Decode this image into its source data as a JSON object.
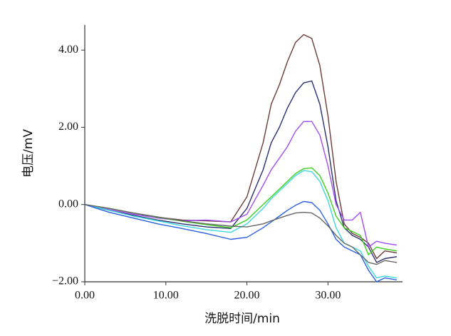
{
  "chart_data": {
    "type": "line",
    "x_label": "洗脱时间/min",
    "y_label": "电压/mV",
    "x": [
      0,
      3,
      6,
      9,
      12,
      15,
      18,
      20,
      22,
      23,
      24,
      25,
      26,
      27,
      28,
      29,
      30,
      31,
      32,
      33,
      34,
      35,
      36,
      37,
      38.5
    ],
    "series": [
      {
        "color": "#6b3a3a",
        "values": [
          0,
          -0.13,
          -0.25,
          -0.33,
          -0.4,
          -0.42,
          -0.45,
          0.2,
          1.6,
          2.6,
          3.1,
          3.7,
          4.2,
          4.4,
          4.3,
          3.6,
          2.3,
          0.6,
          -0.5,
          -0.75,
          -0.85,
          -1.0,
          -1.4,
          -1.2,
          -1.25
        ]
      },
      {
        "color": "#2b2f6e",
        "values": [
          0,
          -0.15,
          -0.28,
          -0.4,
          -0.5,
          -0.58,
          -0.62,
          -0.1,
          0.9,
          1.6,
          2.0,
          2.5,
          2.9,
          3.15,
          3.2,
          2.6,
          1.5,
          0.1,
          -0.6,
          -0.8,
          -0.9,
          -1.1,
          -1.5,
          -1.4,
          -1.35
        ]
      },
      {
        "color": "#a04ef0",
        "values": [
          0,
          -0.13,
          -0.25,
          -0.35,
          -0.42,
          -0.4,
          -0.45,
          -0.25,
          0.5,
          0.9,
          1.2,
          1.5,
          1.9,
          2.15,
          2.15,
          1.8,
          1.0,
          0.0,
          -0.4,
          -0.4,
          -0.2,
          -1.1,
          -0.95,
          -1.0,
          -1.05
        ]
      },
      {
        "color": "#3ccf1e",
        "values": [
          0,
          -0.1,
          -0.22,
          -0.33,
          -0.43,
          -0.52,
          -0.6,
          -0.4,
          0.0,
          0.2,
          0.4,
          0.6,
          0.8,
          0.93,
          0.95,
          0.75,
          0.3,
          -0.3,
          -0.6,
          -0.7,
          -0.8,
          -1.3,
          -1.1,
          -1.15,
          -1.2
        ]
      },
      {
        "color": "#3fd6e0",
        "values": [
          0,
          -0.15,
          -0.3,
          -0.42,
          -0.55,
          -0.65,
          -0.72,
          -0.5,
          -0.1,
          0.15,
          0.35,
          0.55,
          0.75,
          0.88,
          0.85,
          0.6,
          0.1,
          -0.6,
          -1.0,
          -1.1,
          -1.2,
          -1.6,
          -1.9,
          -1.85,
          -1.9
        ]
      },
      {
        "color": "#2a5fe0",
        "values": [
          0,
          -0.2,
          -0.35,
          -0.5,
          -0.62,
          -0.75,
          -0.9,
          -0.85,
          -0.6,
          -0.45,
          -0.3,
          -0.15,
          -0.02,
          0.08,
          0.05,
          -0.15,
          -0.5,
          -0.9,
          -1.1,
          -1.2,
          -1.3,
          -1.7,
          -2.0,
          -1.9,
          -1.95
        ]
      },
      {
        "color": "#666666",
        "values": [
          0,
          -0.1,
          -0.22,
          -0.32,
          -0.42,
          -0.5,
          -0.56,
          -0.58,
          -0.5,
          -0.42,
          -0.35,
          -0.28,
          -0.22,
          -0.2,
          -0.22,
          -0.35,
          -0.55,
          -0.8,
          -1.0,
          -1.1,
          -1.3,
          -1.5,
          -1.55,
          -1.45,
          -1.5
        ]
      }
    ],
    "xlim": [
      0,
      39.2
    ],
    "ylim": [
      -2,
      4.65
    ],
    "xticks": [
      {
        "value": 0,
        "label": "0.00"
      },
      {
        "value": 10,
        "label": "10.00"
      },
      {
        "value": 20,
        "label": "20.00"
      },
      {
        "value": 30,
        "label": "30.00"
      }
    ],
    "yticks": [
      {
        "value": -2,
        "label": "−2.00"
      },
      {
        "value": 0,
        "label": "0.00"
      },
      {
        "value": 2,
        "label": "2.00"
      },
      {
        "value": 4,
        "label": "4.00"
      }
    ]
  }
}
